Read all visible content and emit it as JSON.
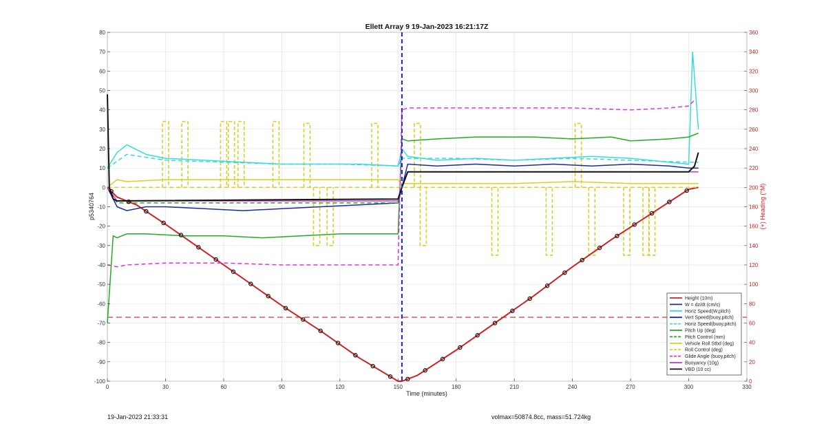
{
  "chart_data": {
    "type": "line",
    "title": "Ellett Array 9 19-Jan-2023 16:21:17Z",
    "xlabel": "Time (minutes)",
    "ylabel": "p5340764",
    "y2label": "(+) Heading (°M)",
    "xlim": [
      0,
      330
    ],
    "ylim": [
      -100,
      80
    ],
    "y2lim": [
      0,
      360
    ],
    "xticks": [
      0,
      30,
      60,
      90,
      120,
      150,
      180,
      210,
      240,
      270,
      300,
      330
    ],
    "yticks": [
      -100,
      -90,
      -80,
      -70,
      -60,
      -50,
      -40,
      -30,
      -20,
      -10,
      0,
      10,
      20,
      30,
      40,
      50,
      60,
      70,
      80
    ],
    "y2ticks": [
      0,
      20,
      40,
      60,
      80,
      100,
      120,
      140,
      160,
      180,
      200,
      220,
      240,
      260,
      280,
      300,
      320,
      340,
      360
    ],
    "grid": true,
    "legend_position": "bottom-right",
    "apogee_x": 152,
    "heading_mean": 66,
    "footer_left": "19-Jan-2023 21:33:31",
    "footer_right": "volmax=50874.8cc, mass=51.724kg",
    "series": [
      {
        "name": "Height (10m)",
        "color": "#cc2222",
        "style": "solid",
        "x": [
          0,
          5,
          15,
          30,
          50,
          70,
          90,
          110,
          130,
          150,
          152,
          160,
          180,
          200,
          220,
          240,
          260,
          280,
          300,
          305
        ],
        "y": [
          0,
          -5,
          -9,
          -19,
          -33,
          -47,
          -61,
          -74,
          -88,
          -100,
          -100,
          -97,
          -84,
          -70,
          -56,
          -41,
          -27,
          -14,
          -1,
          0
        ]
      },
      {
        "name": "W = dz/dt (cm/s)",
        "color": "#1a2a9a",
        "style": "solid",
        "x": [
          0,
          5,
          10,
          20,
          30,
          50,
          70,
          90,
          110,
          130,
          150,
          152,
          155,
          170,
          190,
          210,
          230,
          250,
          270,
          290,
          300,
          305
        ],
        "y": [
          0,
          -10,
          -12,
          -10,
          -10,
          -11,
          -12,
          -11,
          -10,
          -9,
          -8,
          0,
          12,
          11,
          12,
          11,
          12,
          11,
          12,
          11,
          10,
          10
        ]
      },
      {
        "name": "Horiz Speed(W,pitch)",
        "color": "#33dddd",
        "style": "solid",
        "x": [
          0,
          5,
          10,
          20,
          30,
          50,
          70,
          90,
          110,
          130,
          150,
          152,
          155,
          170,
          190,
          210,
          230,
          250,
          270,
          290,
          300,
          302,
          305
        ],
        "y": [
          10,
          18,
          22,
          17,
          15,
          14,
          13,
          12,
          12,
          12,
          11,
          20,
          16,
          14,
          15,
          14,
          15,
          16,
          15,
          13,
          12,
          70,
          30
        ]
      },
      {
        "name": "Vert Speed(buoy,pitch)",
        "color": "#1a2a9a",
        "style": "solid",
        "x": [],
        "y": []
      },
      {
        "name": "Horiz Speed(buoy,pitch)",
        "color": "#33dddd",
        "style": "dashed",
        "x": [
          0,
          10,
          30,
          60,
          90,
          120,
          150,
          152,
          180,
          210,
          240,
          270,
          300,
          305
        ],
        "y": [
          10,
          17,
          14,
          13,
          12,
          12,
          11,
          15,
          15,
          14,
          15,
          14,
          13,
          13
        ]
      },
      {
        "name": "Pitch Up (deg)",
        "color": "#22aa22",
        "style": "solid",
        "x": [
          0,
          3,
          5,
          10,
          20,
          40,
          60,
          80,
          100,
          120,
          150,
          152,
          155,
          170,
          190,
          210,
          220,
          240,
          260,
          270,
          290,
          300,
          305
        ],
        "y": [
          -70,
          -25,
          -26,
          -24,
          -24,
          -25,
          -25,
          -26,
          -25,
          -24,
          -24,
          25,
          24,
          25,
          26,
          26,
          26,
          25,
          26,
          24,
          25,
          26,
          28
        ]
      },
      {
        "name": "Pitch Control (mm)",
        "color": "#22aa22",
        "style": "dashed",
        "x": [
          0,
          5,
          150,
          152,
          155,
          305
        ],
        "y": [
          0,
          -8,
          -8,
          0,
          8,
          8
        ]
      },
      {
        "name": "Vehicle Roll Stbd (deg)",
        "color": "#ddcc22",
        "style": "solid",
        "x": [
          0,
          5,
          10,
          30,
          60,
          90,
          120,
          150,
          152,
          160,
          180,
          210,
          240,
          270,
          300,
          305
        ],
        "y": [
          0,
          4,
          3,
          4,
          4,
          4,
          4,
          4,
          2,
          2,
          2,
          2,
          3,
          2,
          2,
          2
        ]
      },
      {
        "name": "Roll Control (deg)",
        "color": "#ddcc22",
        "style": "dashed",
        "x": [
          0,
          5,
          150,
          152,
          305
        ],
        "y": [
          0,
          0,
          0,
          0,
          0
        ]
      },
      {
        "name": "Glide Angle (buoy,pitch)",
        "color": "#dd33dd",
        "style": "dashed",
        "x": [
          0,
          5,
          10,
          30,
          60,
          90,
          120,
          150,
          152,
          155,
          180,
          210,
          240,
          270,
          290,
          300,
          303
        ],
        "y": [
          -40,
          -41,
          -40,
          -39,
          -39,
          -40,
          -40,
          -40,
          40,
          41,
          41,
          41,
          41,
          40,
          41,
          42,
          45
        ]
      },
      {
        "name": "Buoyancy (10g)",
        "color": "#cc33cc",
        "style": "solid",
        "x": [
          0,
          5,
          150,
          152,
          155,
          305
        ],
        "y": [
          0,
          -7,
          -7,
          0,
          8,
          8
        ]
      },
      {
        "name": "VBD (10 cc)",
        "color": "#111111",
        "style": "solid",
        "x": [
          0,
          1,
          3,
          5,
          150,
          152,
          155,
          300,
          303,
          305
        ],
        "y": [
          48,
          0,
          -6,
          -7,
          -6,
          0,
          8,
          8,
          11,
          18
        ]
      }
    ],
    "annotations": {
      "roll_control_pulses": [
        {
          "x": 30,
          "y": 34
        },
        {
          "x": 40,
          "y": 34
        },
        {
          "x": 60,
          "y": 34
        },
        {
          "x": 64,
          "y": 34
        },
        {
          "x": 69,
          "y": 34
        },
        {
          "x": 87,
          "y": 34
        },
        {
          "x": 103,
          "y": 33
        },
        {
          "x": 108,
          "y": -30
        },
        {
          "x": 115,
          "y": -30
        },
        {
          "x": 138,
          "y": 33
        },
        {
          "x": 160,
          "y": 33
        },
        {
          "x": 163,
          "y": -30
        },
        {
          "x": 200,
          "y": -35
        },
        {
          "x": 228,
          "y": -35
        },
        {
          "x": 243,
          "y": 33
        },
        {
          "x": 250,
          "y": -35
        },
        {
          "x": 268,
          "y": -35
        },
        {
          "x": 278,
          "y": -35
        },
        {
          "x": 281,
          "y": -35
        }
      ]
    }
  }
}
